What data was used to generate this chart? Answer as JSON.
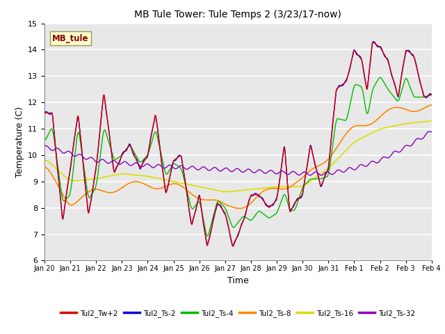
{
  "title": "MB Tule Tower: Tule Temps 2 (3/23/17-now)",
  "xlabel": "Time",
  "ylabel": "Temperature (C)",
  "ylim": [
    6.0,
    15.0
  ],
  "yticks": [
    6.0,
    7.0,
    8.0,
    9.0,
    10.0,
    11.0,
    12.0,
    13.0,
    14.0,
    15.0
  ],
  "bg_color": "#f0f0f0",
  "plot_bg_color": "#e8e8e8",
  "grid_color": "#ffffff",
  "series_colors": {
    "Tul2_Tw+2": "#dd0000",
    "Tul2_Ts-2": "#0000dd",
    "Tul2_Ts-4": "#00bb00",
    "Tul2_Ts-8": "#ff8800",
    "Tul2_Ts-16": "#dddd00",
    "Tul2_Ts-32": "#8800bb"
  },
  "xtick_labels": [
    "Jan 20",
    "Jan 21",
    "Jan 22",
    "Jan 23",
    "Jan 24",
    "Jan 25",
    "Jan 26",
    "Jan 27",
    "Jan 28",
    "Jan 29",
    "Jan 30",
    "Jan 31",
    "Feb 1",
    "Feb 2",
    "Feb 3",
    "Feb 4"
  ],
  "legend_label": "MB_tule",
  "legend_box_color": "#ffffcc",
  "legend_text_color": "#880000",
  "figsize": [
    6.4,
    4.8
  ],
  "dpi": 100
}
